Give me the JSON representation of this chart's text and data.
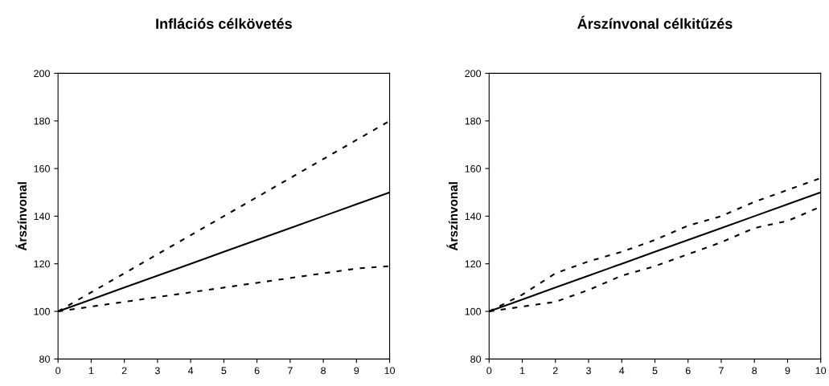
{
  "chart_data": [
    {
      "type": "line",
      "title": "Inflációs célkövetés",
      "ylabel": "Árszínvonal",
      "x": [
        0,
        1,
        2,
        3,
        4,
        5,
        6,
        7,
        8,
        9,
        10
      ],
      "xlim": [
        0,
        10
      ],
      "xticks": [
        0,
        1,
        2,
        3,
        4,
        5,
        6,
        7,
        8,
        9,
        10
      ],
      "ylim": [
        80,
        200
      ],
      "yticks": [
        80,
        100,
        120,
        140,
        160,
        180,
        200
      ],
      "grid": false,
      "legend": false,
      "marker": "none",
      "series": [
        {
          "color": "#000000",
          "line_style": "dashed",
          "values": [
            100,
            108,
            116,
            124,
            132,
            140,
            148,
            156,
            164,
            172,
            180
          ]
        },
        {
          "color": "#000000",
          "line_style": "solid",
          "values": [
            100,
            105,
            110,
            115,
            120,
            125,
            130,
            135,
            140,
            145,
            150
          ]
        },
        {
          "color": "#000000",
          "line_style": "dashed",
          "values": [
            100,
            102,
            104,
            106,
            108,
            110,
            112,
            114,
            116,
            118,
            119
          ]
        }
      ]
    },
    {
      "type": "line",
      "title": "Árszínvonal célkitűzés",
      "ylabel": "Árszínvonal",
      "x": [
        0,
        1,
        2,
        3,
        4,
        5,
        6,
        7,
        8,
        9,
        10
      ],
      "xlim": [
        0,
        10
      ],
      "xticks": [
        0,
        1,
        2,
        3,
        4,
        5,
        6,
        7,
        8,
        9,
        10
      ],
      "ylim": [
        80,
        200
      ],
      "yticks": [
        80,
        100,
        120,
        140,
        160,
        180,
        200
      ],
      "grid": false,
      "legend": false,
      "marker": "none",
      "series": [
        {
          "color": "#000000",
          "line_style": "dashed",
          "values": [
            100,
            107,
            116,
            121,
            125,
            130,
            136,
            140,
            146,
            151,
            156
          ]
        },
        {
          "color": "#000000",
          "line_style": "solid",
          "values": [
            100,
            105,
            110,
            115,
            120,
            125,
            130,
            135,
            140,
            145,
            150
          ]
        },
        {
          "color": "#000000",
          "line_style": "dashed",
          "values": [
            100,
            102,
            104,
            109,
            115,
            119,
            124,
            129,
            135,
            138,
            144
          ]
        }
      ]
    }
  ]
}
